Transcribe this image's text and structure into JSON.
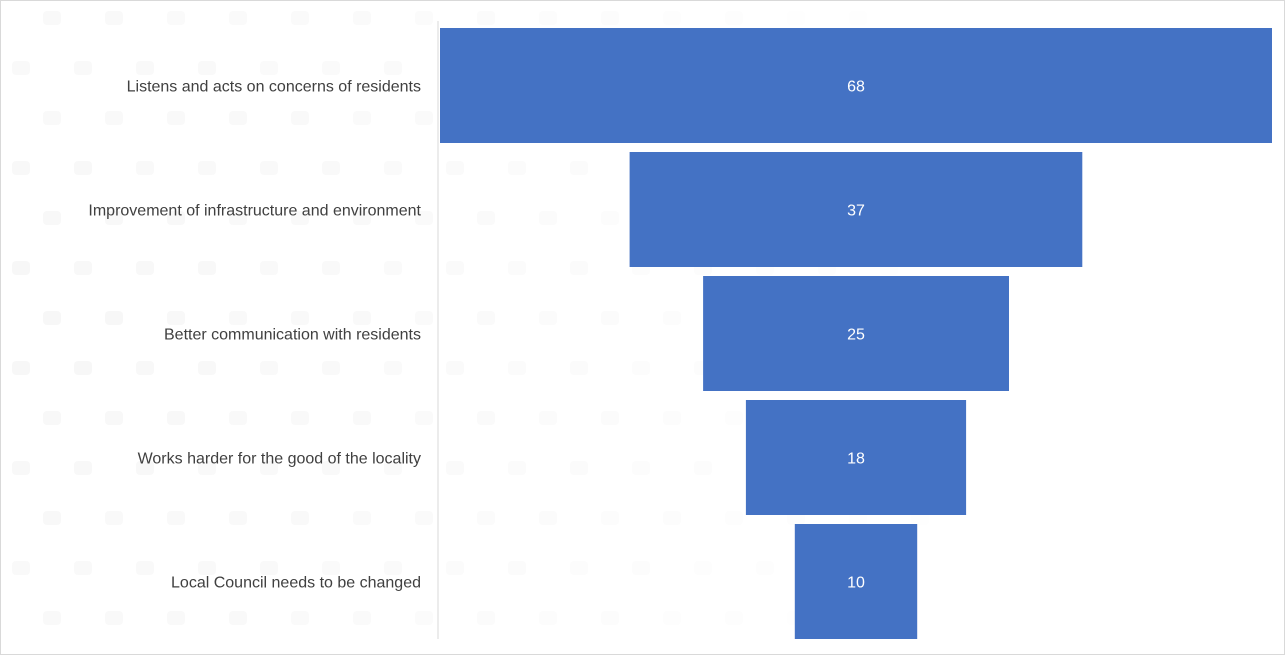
{
  "chart_data": {
    "type": "funnel",
    "categories": [
      "Listens and acts on concerns of residents",
      "Improvement of infrastructure and environment",
      "Better communication with residents",
      "Works harder for the good of the locality",
      "Local Council needs to be changed"
    ],
    "values": [
      68,
      37,
      25,
      18,
      10
    ],
    "value_labels": [
      "68",
      "37",
      "25",
      "18",
      "10"
    ],
    "bar_color": "#4472C4",
    "axis_color": "#d9d9d9",
    "label_color": "#404040",
    "value_label_color": "#ffffff",
    "legend": "none",
    "grid": false
  }
}
